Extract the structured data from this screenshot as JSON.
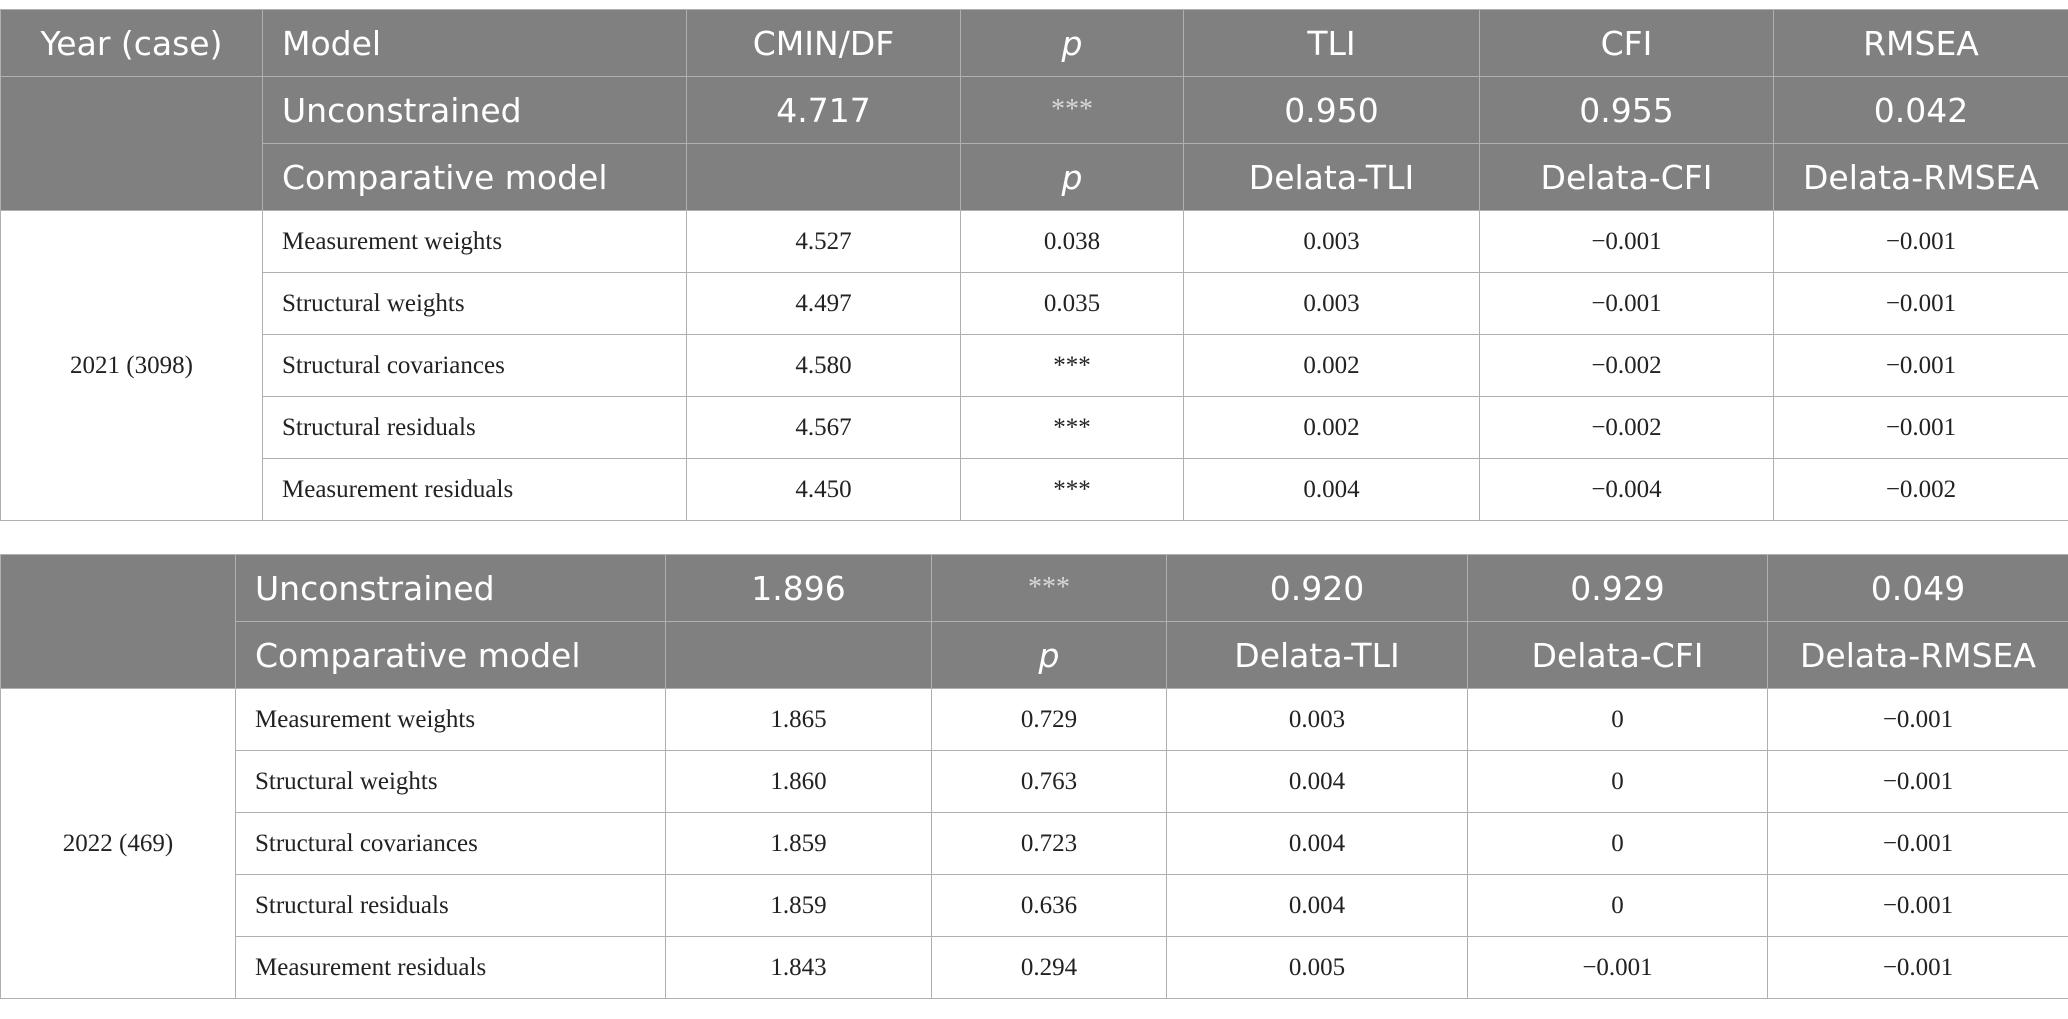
{
  "tables": [
    {
      "header": [
        "Year (case)",
        "Model",
        "CMIN/DF",
        "p",
        "TLI",
        "CFI",
        "RMSEA"
      ],
      "baseline": {
        "model": "Unconstrained",
        "values": [
          "4.717",
          "***",
          "0.950",
          "0.955",
          "0.042"
        ]
      },
      "comparison_header": {
        "model": "Comparative model",
        "p": "p",
        "deltas": [
          "Delata-TLI",
          "Delata-CFI",
          "Delata-RMSEA"
        ]
      },
      "group": "2021 (3098)",
      "rows": [
        [
          "Measurement weights",
          "4.527",
          "0.038",
          "0.003",
          "−0.001",
          "−0.001"
        ],
        [
          "Structural weights",
          "4.497",
          "0.035",
          "0.003",
          "−0.001",
          "−0.001"
        ],
        [
          "Structural covariances",
          "4.580",
          "***",
          "0.002",
          "−0.002",
          "−0.001"
        ],
        [
          "Structural residuals",
          "4.567",
          "***",
          "0.002",
          "−0.002",
          "−0.001"
        ],
        [
          "Measurement residuals",
          "4.450",
          "***",
          "0.004",
          "−0.004",
          "−0.002"
        ]
      ]
    },
    {
      "baseline": {
        "model": "Unconstrained",
        "values": [
          "1.896",
          "***",
          "0.920",
          "0.929",
          "0.049"
        ]
      },
      "comparison_header": {
        "model": "Comparative model",
        "p": "p",
        "deltas": [
          "Delata-TLI",
          "Delata-CFI",
          "Delata-RMSEA"
        ]
      },
      "group": "2022 (469)",
      "rows": [
        [
          "Measurement weights",
          "1.865",
          "0.729",
          "0.003",
          "0",
          "−0.001"
        ],
        [
          "Structural weights",
          "1.860",
          "0.763",
          "0.004",
          "0",
          "−0.001"
        ],
        [
          "Structural covariances",
          "1.859",
          "0.723",
          "0.004",
          "0",
          "−0.001"
        ],
        [
          "Structural residuals",
          "1.859",
          "0.636",
          "0.004",
          "0",
          "−0.001"
        ],
        [
          "Measurement residuals",
          "1.843",
          "0.294",
          "0.005",
          "−0.001",
          "−0.001"
        ]
      ]
    }
  ]
}
